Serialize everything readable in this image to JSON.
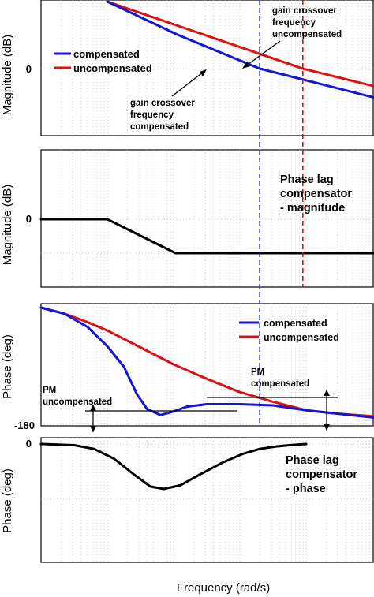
{
  "figure": {
    "xlabel": "Frequency   (rad/s)"
  },
  "panels": {
    "p1": {
      "ylabel": "Magnitude (dB)",
      "tick_zero": "0"
    },
    "p2": {
      "ylabel": "Magnitude (dB)",
      "tick_zero": "0",
      "title": [
        "Phase lag",
        "compensator",
        "- magnitude"
      ]
    },
    "p3": {
      "ylabel": "Phase (deg)",
      "tick_m180": "-180"
    },
    "p4": {
      "ylabel": "Phase (deg)",
      "tick_zero": "0",
      "title": [
        "Phase lag",
        "compensator",
        "- phase"
      ]
    }
  },
  "legend": {
    "compensated": "compensated",
    "uncompensated": "uncompensated"
  },
  "annotations": {
    "gc_uncomp": [
      "gain crossover",
      "frequency",
      "uncompensated"
    ],
    "gc_comp": [
      "gain crossover",
      "frequency",
      "compensated"
    ],
    "pm_comp": [
      "PM",
      "compensated"
    ],
    "pm_uncomp": [
      "PM",
      "uncompensated"
    ]
  },
  "colors": {
    "compensated": "#1515d8",
    "uncompensated": "#e01010",
    "compensator": "#000000"
  },
  "chart_data": [
    {
      "type": "line",
      "title": "",
      "xlabel": "",
      "ylabel": "Magnitude (dB)",
      "x_scale": "log",
      "x_decades": [
        0,
        4
      ],
      "y_tick_labels": [
        "0"
      ],
      "crossover_markers": {
        "compensated": 3.3,
        "uncompensated": 3.95
      },
      "series": [
        {
          "name": "compensated",
          "x": [
            1.0,
            2.06,
            3.3,
            7.3
          ],
          "y": [
            85,
            43,
            0,
            -85
          ]
        },
        {
          "name": "uncompensated",
          "x": [
            1.0,
            3.95,
            8.05
          ],
          "y": [
            85,
            0,
            -85
          ]
        }
      ]
    },
    {
      "type": "line",
      "title": "Phase lag compensator - magnitude",
      "xlabel": "",
      "ylabel": "Magnitude (dB)",
      "x_scale": "log",
      "y_tick_labels": [
        "0"
      ],
      "series": [
        {
          "x": [
            0.0,
            1.0,
            2.03,
            10.0
          ],
          "y": [
            0,
            0,
            -43,
            -43
          ]
        }
      ]
    },
    {
      "type": "line",
      "title": "",
      "xlabel": "",
      "ylabel": "Phase (deg)",
      "x_scale": "log",
      "y_tick_labels": [
        "-180"
      ],
      "series": [
        {
          "name": "compensated",
          "x": [
            0.0,
            0.35,
            0.7,
            1.0,
            1.25,
            1.45,
            1.6,
            1.8,
            2.0,
            2.2,
            2.5,
            3.0,
            3.5,
            4.0,
            4.5,
            5.0,
            5.5,
            6.0,
            6.5,
            7.0,
            7.3,
            7.7
          ],
          "y": [
            -88,
            -93,
            -104,
            -120,
            -137,
            -160,
            -172,
            -177,
            -174,
            -170,
            -168,
            -168,
            -169,
            -173,
            -176,
            -179,
            -180,
            -181,
            -182,
            -183,
            -184,
            -184
          ]
        },
        {
          "name": "uncompensated",
          "x": [
            0.0,
            0.35,
            0.7,
            1.0,
            1.5,
            2.0,
            2.5,
            3.0,
            3.5,
            4.0,
            4.5,
            5.0,
            5.5,
            6.0,
            6.5,
            7.0,
            7.4,
            7.8,
            8.2,
            8.5
          ],
          "y": [
            -88,
            -93,
            -100,
            -107,
            -121,
            -135,
            -147,
            -158,
            -166,
            -173,
            -176,
            -178,
            -180,
            -181,
            -182,
            -183,
            -184,
            -183,
            -184,
            -184
          ]
        }
      ]
    },
    {
      "type": "line",
      "title": "Phase lag compensator - phase",
      "xlabel": "",
      "ylabel": "Phase (deg)",
      "x_scale": "log",
      "y_tick_labels": [
        "0"
      ],
      "series": [
        {
          "x": [
            0.0,
            0.5,
            0.8,
            1.1,
            1.4,
            1.65,
            1.85,
            2.1,
            2.4,
            2.75,
            3.05,
            3.3,
            3.55,
            3.75,
            4.0
          ],
          "y": [
            0,
            -1,
            -4,
            -12,
            -25,
            -35,
            -37,
            -34,
            -25,
            -15,
            -8,
            -4,
            -2,
            -1,
            0
          ]
        }
      ]
    }
  ]
}
